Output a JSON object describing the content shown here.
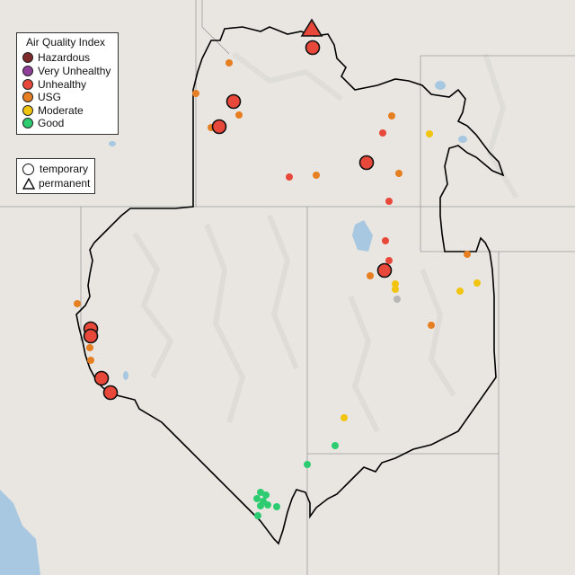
{
  "legend": {
    "title": "Air Quality Index",
    "categories": [
      {
        "label": "Hazardous",
        "color": "#7e2a2a"
      },
      {
        "label": "Very Unhealthy",
        "color": "#8f3f97"
      },
      {
        "label": "Unhealthy",
        "color": "#e8483a"
      },
      {
        "label": "USG",
        "color": "#e67e22"
      },
      {
        "label": "Moderate",
        "color": "#f1c40f"
      },
      {
        "label": "Good",
        "color": "#2ecc71"
      }
    ],
    "monitor_types": [
      {
        "label": "temporary",
        "icon": "circle-icon"
      },
      {
        "label": "permanent",
        "icon": "triangle-icon"
      }
    ]
  },
  "colors": {
    "water": "#a7c8e0",
    "land": "#e9e6e2",
    "border": "#000000",
    "state_lines": "#9a9a9a",
    "unknown_marker": "#b8b8b8"
  },
  "sites": [
    {
      "type": "temporary",
      "aqi": "Unhealthy",
      "size": "large"
    },
    {
      "type": "permanent",
      "aqi": "Unhealthy",
      "size": "large"
    },
    {
      "type": "temporary",
      "aqi": "Unhealthy",
      "size": "large"
    },
    {
      "type": "temporary",
      "aqi": "Unhealthy",
      "size": "large"
    },
    {
      "type": "temporary",
      "aqi": "Unhealthy",
      "size": "large"
    },
    {
      "type": "temporary",
      "aqi": "Unhealthy",
      "size": "large"
    },
    {
      "type": "temporary",
      "aqi": "Unhealthy",
      "size": "large"
    },
    {
      "type": "temporary",
      "aqi": "Unhealthy",
      "size": "large"
    },
    {
      "type": "temporary",
      "aqi": "Unhealthy",
      "size": "large"
    },
    {
      "type": "temporary",
      "aqi": "Unhealthy",
      "size": "large"
    }
  ]
}
